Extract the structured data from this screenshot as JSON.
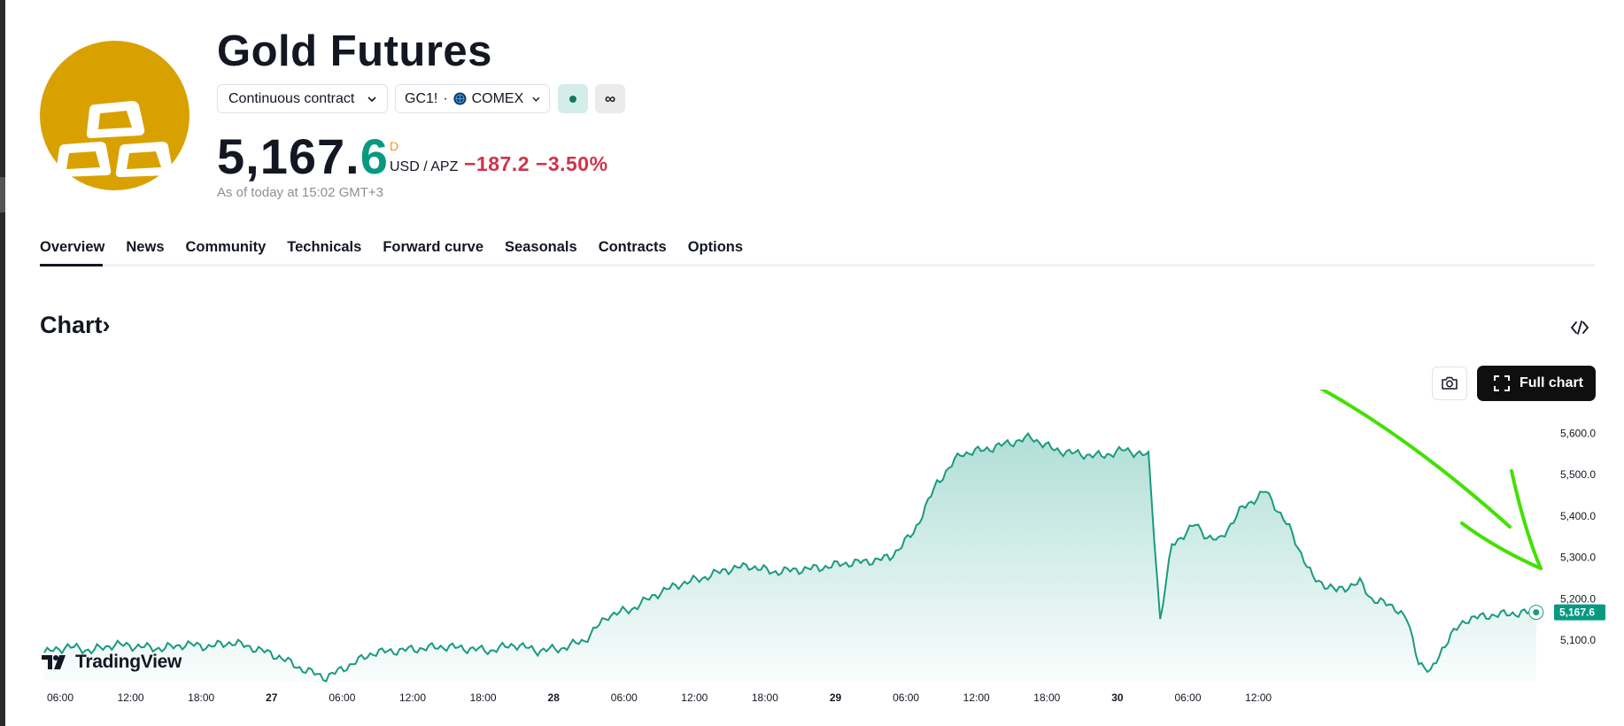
{
  "instrument": {
    "title": "Gold Futures",
    "contract_selector": "Continuous contract",
    "symbol": "GC1!",
    "separator": "·",
    "exchange": "COMEX",
    "dot_icon": "market-status-dot-icon",
    "infinity_label": "∞"
  },
  "price": {
    "integer": "5,167.",
    "decimal": "6",
    "flag": "D",
    "unit": "USD / APZ",
    "change": "−187.2",
    "change_pct": "−3.50%",
    "as_of": "As of today at 15:02 GMT+3"
  },
  "tabs": [
    {
      "label": "Overview",
      "active": true
    },
    {
      "label": "News",
      "active": false
    },
    {
      "label": "Community",
      "active": false
    },
    {
      "label": "Technicals",
      "active": false
    },
    {
      "label": "Forward curve",
      "active": false
    },
    {
      "label": "Seasonals",
      "active": false
    },
    {
      "label": "Contracts",
      "active": false
    },
    {
      "label": "Options",
      "active": false
    }
  ],
  "chart_section": {
    "heading": "Chart",
    "heading_arrow": "›",
    "embed_icon": "code-embed-icon",
    "camera_icon": "camera-icon",
    "full_chart_label": "Full chart",
    "brand": "TradingView"
  },
  "colors": {
    "accent_up": "#089981",
    "accent_down": "#d1324a",
    "logo_bg": "#d9a100",
    "line": "#1a9a80",
    "annotation": "#44e000"
  },
  "chart_data": {
    "type": "area",
    "y_ticks": [
      "5,600.0",
      "5,500.0",
      "5,400.0",
      "5,300.0",
      "5,200.0",
      "5,100.0"
    ],
    "ylim": [
      5000,
      5620
    ],
    "x_ticks": [
      "06:00",
      "12:00",
      "18:00",
      "27",
      "06:00",
      "12:00",
      "18:00",
      "28",
      "06:00",
      "12:00",
      "18:00",
      "29",
      "06:00",
      "12:00",
      "18:00",
      "30",
      "06:00",
      "12:00"
    ],
    "last_price_label": "5,167.6",
    "x_hours": [
      0,
      2,
      4,
      6,
      8,
      10,
      12,
      14,
      16,
      18,
      20,
      22,
      24,
      26,
      28,
      30,
      32,
      34,
      36,
      38,
      40,
      42,
      44,
      46,
      48,
      50,
      52,
      54,
      56,
      58,
      60,
      62,
      64,
      66,
      68,
      70,
      72,
      74,
      76,
      78,
      80,
      82,
      84,
      86,
      88,
      90,
      92,
      94,
      95,
      96,
      98,
      99,
      100,
      102,
      104,
      106,
      108,
      110,
      111,
      112,
      113,
      114,
      115,
      116,
      117,
      118,
      119,
      120,
      121,
      122,
      123,
      124,
      125,
      126,
      126.5,
      127
    ],
    "values": [
      5070,
      5085,
      5075,
      5090,
      5085,
      5080,
      5090,
      5085,
      5095,
      5080,
      5060,
      5030,
      5010,
      5040,
      5070,
      5075,
      5080,
      5085,
      5080,
      5075,
      5090,
      5075,
      5080,
      5100,
      5160,
      5175,
      5210,
      5235,
      5250,
      5270,
      5280,
      5265,
      5270,
      5275,
      5285,
      5290,
      5300,
      5360,
      5480,
      5550,
      5560,
      5575,
      5590,
      5560,
      5550,
      5545,
      5560,
      5545,
      5150,
      5330,
      5380,
      5350,
      5340,
      5420,
      5460,
      5370,
      5250,
      5220,
      5230,
      5240,
      5200,
      5190,
      5180,
      5150,
      5050,
      5020,
      5080,
      5120,
      5150,
      5155,
      5160,
      5162,
      5165,
      5166,
      5167,
      5167.6
    ]
  }
}
